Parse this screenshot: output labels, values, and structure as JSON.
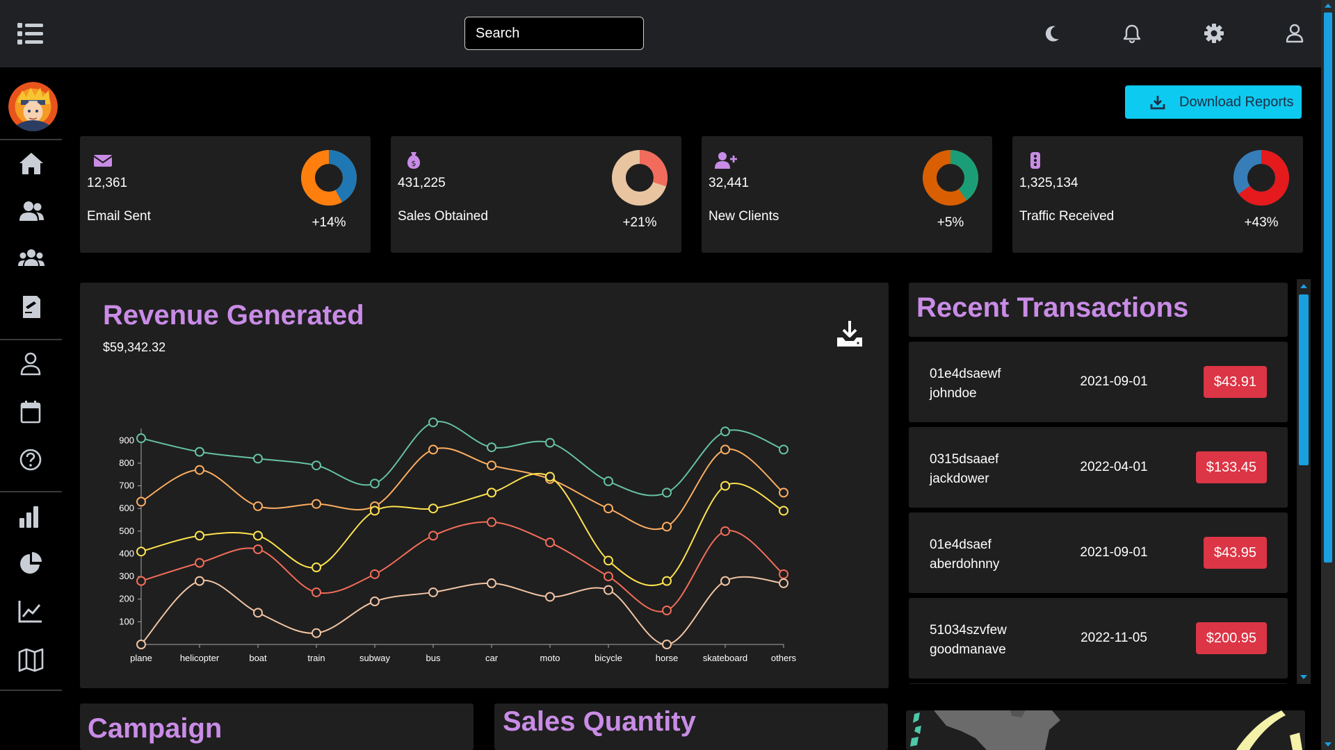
{
  "header": {
    "search_placeholder": "Search",
    "icons": [
      "menu-icon",
      "moon-icon",
      "bell-icon",
      "gear-icon",
      "user-icon"
    ]
  },
  "sidebar": {
    "icons": [
      "home-icon",
      "team-icon",
      "contacts-icon",
      "invoices-icon",
      "profile-icon",
      "calendar-icon",
      "faq-icon",
      "bar-chart-icon",
      "pie-chart-icon",
      "line-chart-icon",
      "map-icon"
    ]
  },
  "actions": {
    "download_reports": "Download Reports"
  },
  "stats": [
    {
      "value": "12,361",
      "label": "Email Sent",
      "change": "+14%",
      "icon": "envelope-icon",
      "colors": [
        "#1f77b4",
        "#ff7f0e"
      ],
      "progress": 0.42
    },
    {
      "value": "431,225",
      "label": "Sales Obtained",
      "change": "+21%",
      "icon": "money-bag-icon",
      "colors": [
        "#f16c5c",
        "#e8c4a0"
      ],
      "progress": 0.3
    },
    {
      "value": "32,441",
      "label": "New Clients",
      "change": "+5%",
      "icon": "user-plus-icon",
      "colors": [
        "#1b9e77",
        "#d95f02"
      ],
      "progress": 0.4
    },
    {
      "value": "1,325,134",
      "label": "Traffic Received",
      "change": "+43%",
      "icon": "traffic-light-icon",
      "colors": [
        "#e41a1c",
        "#377eb8"
      ],
      "progress": 0.65
    }
  ],
  "revenue": {
    "title": "Revenue Generated",
    "amount": "$59,342.32"
  },
  "chart_data": {
    "type": "line",
    "categories": [
      "plane",
      "helicopter",
      "boat",
      "train",
      "subway",
      "bus",
      "car",
      "moto",
      "bicycle",
      "horse",
      "skateboard",
      "others"
    ],
    "ylim": [
      0,
      950
    ],
    "yticks": [
      100,
      200,
      300,
      400,
      500,
      600,
      700,
      800,
      900
    ],
    "series": [
      {
        "color": "#66c2a5",
        "values": [
          910,
          850,
          820,
          790,
          710,
          980,
          870,
          890,
          720,
          670,
          940,
          860
        ]
      },
      {
        "color": "#fdae61",
        "values": [
          630,
          770,
          610,
          620,
          610,
          860,
          790,
          730,
          600,
          520,
          860,
          670
        ]
      },
      {
        "color": "#ffe34f",
        "values": [
          410,
          480,
          480,
          340,
          590,
          600,
          670,
          740,
          370,
          280,
          700,
          590
        ]
      },
      {
        "color": "#f46d5a",
        "values": [
          280,
          360,
          420,
          230,
          310,
          480,
          540,
          450,
          300,
          150,
          500,
          310
        ]
      },
      {
        "color": "#f2c4a4",
        "values": [
          0,
          280,
          140,
          50,
          190,
          230,
          270,
          210,
          240,
          0,
          280,
          270
        ]
      }
    ],
    "grid": false,
    "legend": "none"
  },
  "transactions": {
    "title": "Recent Transactions",
    "rows": [
      {
        "txid": "01e4dsaewf",
        "user": "johndoe",
        "date": "2021-09-01",
        "cost": "$43.91"
      },
      {
        "txid": "0315dsaaef",
        "user": "jackdower",
        "date": "2022-04-01",
        "cost": "$133.45"
      },
      {
        "txid": "01e4dsaef",
        "user": "aberdohnny",
        "date": "2021-09-01",
        "cost": "$43.95"
      },
      {
        "txid": "51034szvfew",
        "user": "goodmanave",
        "date": "2022-11-05",
        "cost": "$200.95"
      }
    ]
  },
  "bottom": {
    "campaign_title": "Campaign",
    "sales_quantity_title": "Sales Quantity"
  }
}
